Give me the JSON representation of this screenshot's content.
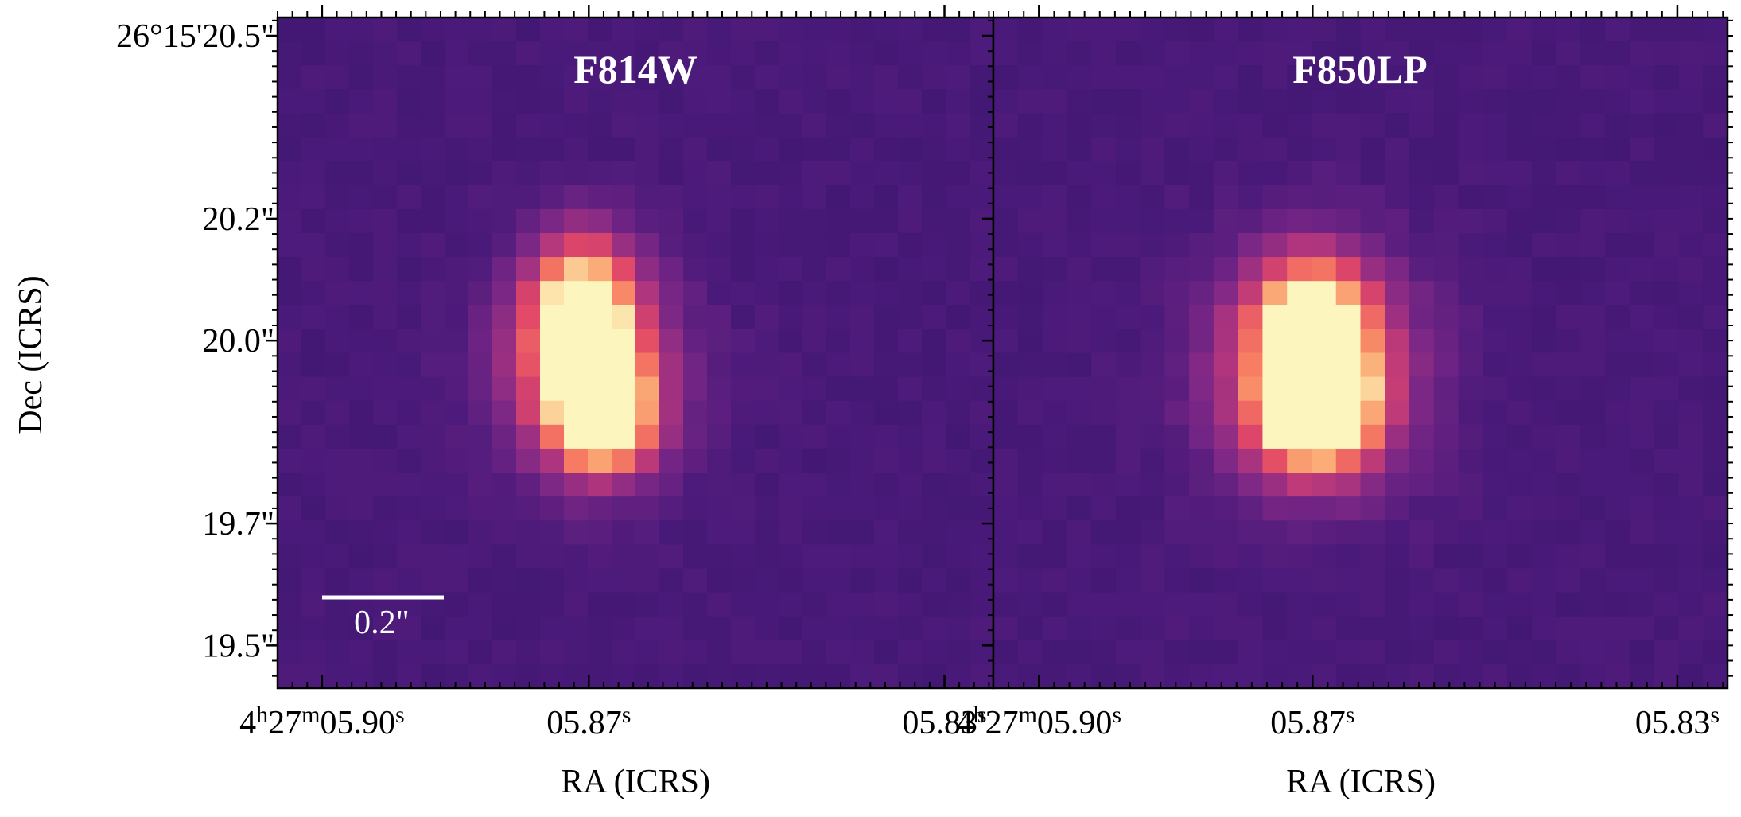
{
  "figure": {
    "ylabel": "Dec (ICRS)",
    "y_ticks": [
      {
        "dec_arcsec": 20.5,
        "label": "26°15'20.5\""
      },
      {
        "dec_arcsec": 20.2,
        "label": "20.2\""
      },
      {
        "dec_arcsec": 20.0,
        "label": "20.0\""
      },
      {
        "dec_arcsec": 19.7,
        "label": "19.7\""
      },
      {
        "dec_arcsec": 19.5,
        "label": "19.5\""
      }
    ],
    "x_ticks": [
      {
        "ra_sec": 5.9,
        "label_pre": "4",
        "label_h": "h",
        "label_mid": "27",
        "label_m": "m",
        "label_main": "05.90",
        "label_s": "s"
      },
      {
        "ra_sec": 5.87,
        "label_pre": "",
        "label_h": "",
        "label_mid": "",
        "label_m": "",
        "label_main": "05.87",
        "label_s": "s"
      },
      {
        "ra_sec": 5.83,
        "label_pre": "",
        "label_h": "",
        "label_mid": "",
        "label_m": "",
        "label_main": "05.83",
        "label_s": "s"
      }
    ],
    "scalebar": {
      "label": "0.2\"",
      "arcsec": 0.2
    },
    "colors": {
      "background": "#4a1a7a",
      "frame": "#000000",
      "text": "#ffffff"
    }
  },
  "chart_data": [
    {
      "type": "heatmap",
      "title": "F814W",
      "xlabel": "RA (ICRS)",
      "ylabel": "Dec (ICRS)",
      "colormap": "magma",
      "xlim_ra_sec": [
        5.905,
        5.8245
      ],
      "ylim_dec_arcsec": [
        19.43,
        20.53
      ],
      "sources": [
        {
          "ra_sec": 5.8708,
          "dec_arcsec": 20.05,
          "peak": 0.8,
          "sigma_ra_pix": 1.5,
          "sigma_dec_pix": 2.2
        },
        {
          "ra_sec": 5.8685,
          "dec_arcsec": 19.88,
          "peak": 0.98,
          "sigma_ra_pix": 1.4,
          "sigma_dec_pix": 1.6
        },
        {
          "ra_sec": 5.8698,
          "dec_arcsec": 19.95,
          "peak": 0.55,
          "sigma_ra_pix": 2.6,
          "sigma_dec_pix": 3.0
        }
      ]
    },
    {
      "type": "heatmap",
      "title": "F850LP",
      "xlabel": "RA (ICRS)",
      "ylabel": "Dec (ICRS)",
      "colormap": "magma",
      "xlim_ra_sec": [
        5.905,
        5.8245
      ],
      "ylim_dec_arcsec": [
        19.43,
        20.53
      ],
      "sources": [
        {
          "ra_sec": 5.8702,
          "dec_arcsec": 20.02,
          "peak": 0.8,
          "sigma_ra_pix": 1.6,
          "sigma_dec_pix": 2.0
        },
        {
          "ra_sec": 5.8695,
          "dec_arcsec": 19.88,
          "peak": 0.92,
          "sigma_ra_pix": 1.6,
          "sigma_dec_pix": 1.6
        },
        {
          "ra_sec": 5.8698,
          "dec_arcsec": 19.95,
          "peak": 0.55,
          "sigma_ra_pix": 3.0,
          "sigma_dec_pix": 3.4
        }
      ]
    }
  ]
}
